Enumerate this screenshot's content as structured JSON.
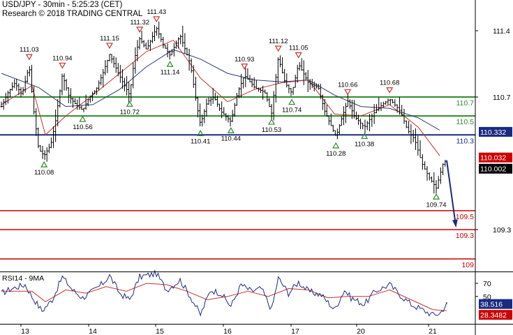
{
  "header": {
    "title": "USD/JPY - 30min - 5:25:23 (CET)",
    "research": "Research © 2018 TRADING CENTRAL"
  },
  "chart_data": {
    "type": "candlestick",
    "price_axis": {
      "ylim": [
        108.9,
        111.7
      ],
      "ticks": [
        "111.4",
        "110.7",
        "109.3"
      ]
    },
    "days": [
      "13",
      "14",
      "15",
      "16",
      "17",
      "20",
      "21"
    ],
    "key_levels": [
      {
        "value": 110.7,
        "label": "110.7",
        "color": "#2e8b2e"
      },
      {
        "value": 110.5,
        "label": "110.5",
        "color": "#2e8b2e"
      },
      {
        "value": 110.3,
        "label": "110.3",
        "color": "#1a2a80"
      },
      {
        "value": 109.5,
        "label": "109.5",
        "color": "#cc0000"
      },
      {
        "value": 109.3,
        "label": "109.3",
        "color": "#cc0000"
      },
      {
        "value": 108.9,
        "label": "109",
        "color": "#cc0000"
      }
    ],
    "price_tags": [
      {
        "value": 110.332,
        "label": "110.332",
        "bg": "#1a2a80"
      },
      {
        "value": 110.032,
        "label": "110.032",
        "bg": "#cc0000"
      },
      {
        "value": 110.002,
        "label": "110.002",
        "bg": "#000000"
      }
    ],
    "pivots": [
      {
        "t": 0.06,
        "label": "111.03",
        "type": "high"
      },
      {
        "t": 0.28,
        "label": "110.08",
        "type": "low"
      },
      {
        "t": 0.55,
        "label": "110.94",
        "type": "high"
      },
      {
        "t": 0.85,
        "label": "110.56",
        "type": "low"
      },
      {
        "t": 1.25,
        "label": "111.15",
        "type": "high"
      },
      {
        "t": 1.55,
        "label": "110.72",
        "type": "low"
      },
      {
        "t": 1.7,
        "label": "111.32",
        "type": "high"
      },
      {
        "t": 1.95,
        "label": "111.43",
        "type": "high"
      },
      {
        "t": 2.15,
        "label": "111.14",
        "type": "low"
      },
      {
        "t": 2.6,
        "label": "110.41",
        "type": "low"
      },
      {
        "t": 3.05,
        "label": "110.44",
        "type": "low"
      },
      {
        "t": 3.25,
        "label": "110.93",
        "type": "high"
      },
      {
        "t": 3.65,
        "label": "110.53",
        "type": "low"
      },
      {
        "t": 3.75,
        "label": "111.12",
        "type": "high"
      },
      {
        "t": 3.95,
        "label": "110.74",
        "type": "low"
      },
      {
        "t": 4.05,
        "label": "111.05",
        "type": "high"
      },
      {
        "t": 4.62,
        "label": "110.28",
        "type": "low"
      },
      {
        "t": 4.8,
        "label": "110.66",
        "type": "high"
      },
      {
        "t": 5.05,
        "label": "110.38",
        "type": "low"
      },
      {
        "t": 5.4,
        "label": "110.68",
        "type": "high"
      },
      {
        "t": 6.05,
        "label": "109.74",
        "type": "low"
      }
    ],
    "price_path": [
      [
        -0.35,
        110.6
      ],
      [
        -0.25,
        110.75
      ],
      [
        -0.15,
        110.85
      ],
      [
        -0.05,
        110.72
      ],
      [
        0.06,
        111.03
      ],
      [
        0.12,
        110.6
      ],
      [
        0.2,
        110.15
      ],
      [
        0.28,
        110.08
      ],
      [
        0.38,
        110.2
      ],
      [
        0.45,
        110.45
      ],
      [
        0.55,
        110.94
      ],
      [
        0.65,
        110.7
      ],
      [
        0.75,
        110.62
      ],
      [
        0.85,
        110.56
      ],
      [
        0.95,
        110.7
      ],
      [
        1.05,
        110.78
      ],
      [
        1.15,
        110.95
      ],
      [
        1.25,
        111.15
      ],
      [
        1.35,
        111.0
      ],
      [
        1.45,
        110.85
      ],
      [
        1.55,
        110.72
      ],
      [
        1.62,
        111.1
      ],
      [
        1.7,
        111.32
      ],
      [
        1.8,
        111.2
      ],
      [
        1.95,
        111.43
      ],
      [
        2.05,
        111.25
      ],
      [
        2.15,
        111.14
      ],
      [
        2.3,
        111.35
      ],
      [
        2.45,
        111.05
      ],
      [
        2.55,
        110.6
      ],
      [
        2.6,
        110.41
      ],
      [
        2.7,
        110.65
      ],
      [
        2.8,
        110.7
      ],
      [
        2.9,
        110.55
      ],
      [
        3.05,
        110.44
      ],
      [
        3.15,
        110.75
      ],
      [
        3.25,
        110.93
      ],
      [
        3.4,
        110.8
      ],
      [
        3.55,
        110.75
      ],
      [
        3.65,
        110.53
      ],
      [
        3.75,
        111.12
      ],
      [
        3.85,
        110.85
      ],
      [
        3.95,
        110.74
      ],
      [
        4.05,
        111.05
      ],
      [
        4.2,
        110.85
      ],
      [
        4.35,
        110.8
      ],
      [
        4.45,
        110.55
      ],
      [
        4.62,
        110.28
      ],
      [
        4.72,
        110.5
      ],
      [
        4.8,
        110.66
      ],
      [
        4.9,
        110.5
      ],
      [
        5.05,
        110.38
      ],
      [
        5.2,
        110.55
      ],
      [
        5.3,
        110.62
      ],
      [
        5.4,
        110.68
      ],
      [
        5.55,
        110.55
      ],
      [
        5.65,
        110.35
      ],
      [
        5.75,
        110.25
      ],
      [
        5.85,
        110.0
      ],
      [
        5.95,
        109.85
      ],
      [
        6.05,
        109.74
      ],
      [
        6.15,
        110.0
      ],
      [
        6.2,
        110.032
      ]
    ],
    "forecast": {
      "from_t": 6.2,
      "from_value": 110.032,
      "to_t": 6.42,
      "to_value": 109.3
    },
    "ma_fast": [
      [
        -0.35,
        110.62
      ],
      [
        0.1,
        110.82
      ],
      [
        0.3,
        110.3
      ],
      [
        0.6,
        110.5
      ],
      [
        1.0,
        110.72
      ],
      [
        1.4,
        110.95
      ],
      [
        1.8,
        111.18
      ],
      [
        2.2,
        111.3
      ],
      [
        2.6,
        110.9
      ],
      [
        3.0,
        110.65
      ],
      [
        3.4,
        110.78
      ],
      [
        3.8,
        110.85
      ],
      [
        4.2,
        110.88
      ],
      [
        4.6,
        110.52
      ],
      [
        5.0,
        110.5
      ],
      [
        5.4,
        110.62
      ],
      [
        5.8,
        110.38
      ],
      [
        6.1,
        110.08
      ]
    ],
    "ma_slow": [
      [
        -0.35,
        110.95
      ],
      [
        0.2,
        110.8
      ],
      [
        0.6,
        110.6
      ],
      [
        1.0,
        110.62
      ],
      [
        1.4,
        110.78
      ],
      [
        1.8,
        111.02
      ],
      [
        2.2,
        111.2
      ],
      [
        2.6,
        111.1
      ],
      [
        3.0,
        110.95
      ],
      [
        3.4,
        110.88
      ],
      [
        3.8,
        110.86
      ],
      [
        4.2,
        110.88
      ],
      [
        4.6,
        110.72
      ],
      [
        5.0,
        110.6
      ],
      [
        5.4,
        110.58
      ],
      [
        5.8,
        110.48
      ],
      [
        6.1,
        110.35
      ]
    ],
    "rsi": {
      "label": "RSI14 - 9MA",
      "ylim": [
        0,
        100
      ],
      "ticks": [
        "70",
        "50"
      ],
      "value_tags": [
        {
          "value": 38.516,
          "label": "38.516",
          "bg": "#1a2a80"
        },
        {
          "value": 28.3482,
          "label": "28.3482",
          "bg": "#cc0000"
        }
      ],
      "values": [
        [
          -0.35,
          55
        ],
        [
          -0.2,
          62
        ],
        [
          0.0,
          68
        ],
        [
          0.1,
          50
        ],
        [
          0.25,
          28
        ],
        [
          0.4,
          45
        ],
        [
          0.55,
          80
        ],
        [
          0.7,
          60
        ],
        [
          0.85,
          48
        ],
        [
          1.0,
          58
        ],
        [
          1.15,
          70
        ],
        [
          1.25,
          82
        ],
        [
          1.4,
          55
        ],
        [
          1.55,
          45
        ],
        [
          1.7,
          80
        ],
        [
          1.95,
          85
        ],
        [
          2.1,
          60
        ],
        [
          2.3,
          75
        ],
        [
          2.45,
          50
        ],
        [
          2.6,
          22
        ],
        [
          2.75,
          60
        ],
        [
          2.9,
          55
        ],
        [
          3.05,
          35
        ],
        [
          3.2,
          68
        ],
        [
          3.35,
          58
        ],
        [
          3.5,
          62
        ],
        [
          3.65,
          30
        ],
        [
          3.75,
          78
        ],
        [
          3.9,
          55
        ],
        [
          4.05,
          72
        ],
        [
          4.2,
          58
        ],
        [
          4.4,
          52
        ],
        [
          4.6,
          30
        ],
        [
          4.75,
          60
        ],
        [
          4.85,
          48
        ],
        [
          5.05,
          38
        ],
        [
          5.2,
          58
        ],
        [
          5.4,
          68
        ],
        [
          5.55,
          52
        ],
        [
          5.7,
          38
        ],
        [
          5.85,
          30
        ],
        [
          6.0,
          22
        ],
        [
          6.1,
          24
        ],
        [
          6.2,
          38.5
        ]
      ],
      "ma": [
        [
          -0.35,
          58
        ],
        [
          0.1,
          58
        ],
        [
          0.3,
          42
        ],
        [
          0.6,
          60
        ],
        [
          0.9,
          55
        ],
        [
          1.2,
          65
        ],
        [
          1.5,
          58
        ],
        [
          1.8,
          70
        ],
        [
          2.1,
          68
        ],
        [
          2.4,
          58
        ],
        [
          2.7,
          45
        ],
        [
          3.0,
          50
        ],
        [
          3.3,
          58
        ],
        [
          3.6,
          50
        ],
        [
          3.9,
          62
        ],
        [
          4.2,
          60
        ],
        [
          4.5,
          48
        ],
        [
          4.8,
          50
        ],
        [
          5.1,
          50
        ],
        [
          5.4,
          60
        ],
        [
          5.7,
          45
        ],
        [
          6.0,
          30
        ],
        [
          6.2,
          28.3
        ]
      ]
    }
  }
}
